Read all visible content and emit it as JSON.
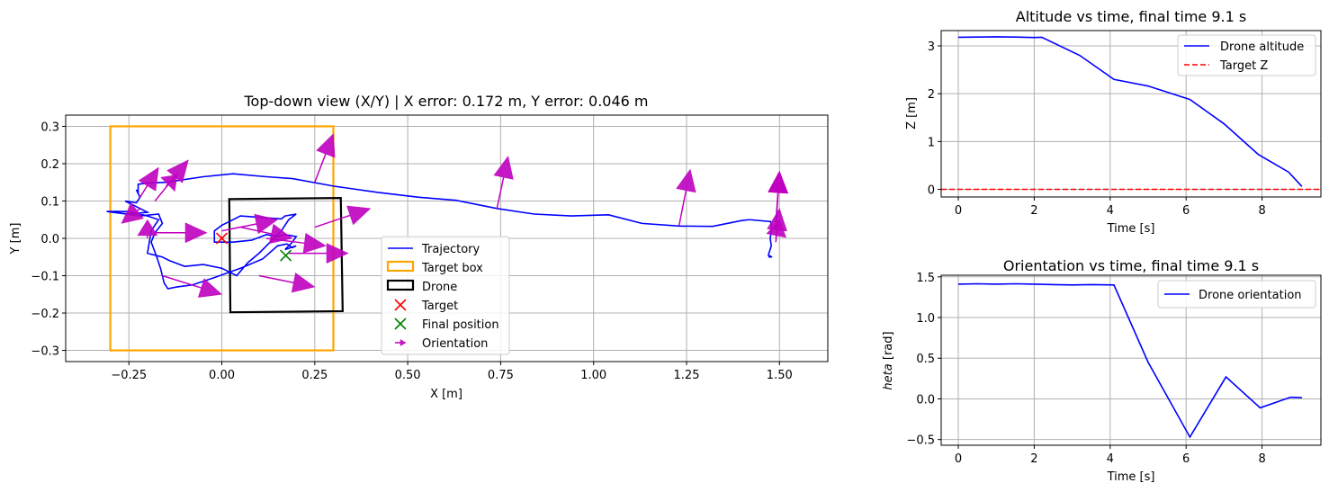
{
  "chart_data": [
    {
      "id": "topdown",
      "type": "scatter",
      "title": "Top-down view (X/Y) | X error: 0.172 m, Y error: 0.046 m",
      "xlabel": "X [m]",
      "ylabel": "Y [m]",
      "xlim": [
        -0.42,
        1.63
      ],
      "ylim": [
        -0.33,
        0.33
      ],
      "xticks": [
        -0.25,
        0.0,
        0.25,
        0.5,
        0.75,
        1.0,
        1.25,
        1.5
      ],
      "xtick_labels": [
        "−0.25",
        "0.00",
        "0.25",
        "0.50",
        "0.75",
        "1.00",
        "1.25",
        "1.50"
      ],
      "yticks": [
        -0.3,
        -0.2,
        -0.1,
        0.0,
        0.1,
        0.2,
        0.3
      ],
      "ytick_labels": [
        "−0.3",
        "−0.2",
        "−0.1",
        "0.0",
        "0.1",
        "0.2",
        "0.3"
      ],
      "grid": true,
      "legend_position": "lower-center",
      "colors": {
        "trajectory": "#0000ff",
        "target_box": "#ffa500",
        "drone": "#000000",
        "target": "#ff0000",
        "final": "#008000",
        "orientation": "#bf00bf"
      },
      "series": [
        {
          "name": "Trajectory",
          "points": [
            [
              1.47,
              -0.05
            ],
            [
              1.48,
              -0.05
            ],
            [
              1.47,
              -0.045
            ],
            [
              1.478,
              -0.02
            ],
            [
              1.475,
              0.0
            ],
            [
              1.48,
              0.03
            ],
            [
              1.476,
              0.045
            ],
            [
              1.42,
              0.05
            ],
            [
              1.4,
              0.048
            ],
            [
              1.32,
              0.032
            ],
            [
              1.23,
              0.033
            ],
            [
              1.13,
              0.04
            ],
            [
              1.04,
              0.063
            ],
            [
              0.94,
              0.06
            ],
            [
              0.84,
              0.065
            ],
            [
              0.74,
              0.08
            ],
            [
              0.63,
              0.102
            ],
            [
              0.53,
              0.11
            ],
            [
              0.42,
              0.123
            ],
            [
              0.3,
              0.14
            ],
            [
              0.19,
              0.16
            ],
            [
              0.12,
              0.165
            ],
            [
              0.03,
              0.173
            ],
            [
              -0.05,
              0.165
            ],
            [
              -0.15,
              0.15
            ],
            [
              -0.2,
              0.148
            ],
            [
              -0.225,
              0.145
            ],
            [
              -0.225,
              0.125
            ],
            [
              -0.23,
              0.13
            ],
            [
              -0.22,
              0.11
            ],
            [
              -0.23,
              0.095
            ],
            [
              -0.26,
              0.1
            ],
            [
              -0.22,
              0.08
            ],
            [
              -0.2,
              0.07
            ],
            [
              -0.25,
              0.065
            ],
            [
              -0.31,
              0.072
            ],
            [
              -0.22,
              0.06
            ],
            [
              -0.17,
              0.065
            ],
            [
              -0.16,
              0.04
            ],
            [
              -0.18,
              0.015
            ],
            [
              -0.19,
              -0.01
            ],
            [
              -0.175,
              -0.05
            ],
            [
              -0.165,
              -0.08
            ],
            [
              -0.155,
              -0.12
            ],
            [
              -0.145,
              -0.135
            ],
            [
              -0.12,
              -0.13
            ],
            [
              -0.08,
              -0.125
            ],
            [
              -0.02,
              -0.105
            ],
            [
              0.05,
              -0.08
            ],
            [
              0.11,
              -0.055
            ],
            [
              0.15,
              -0.02
            ],
            [
              0.175,
              -0.015
            ],
            [
              0.19,
              -0.025
            ],
            [
              0.2,
              -0.02
            ],
            [
              0.17,
              -0.03
            ],
            [
              0.19,
              -0.01
            ],
            [
              0.2,
              0.005
            ],
            [
              0.17,
              0.01
            ],
            [
              0.15,
              0.005
            ],
            [
              0.12,
              0.01
            ],
            [
              0.08,
              -0.005
            ],
            [
              0.03,
              -0.01
            ],
            [
              -0.02,
              -0.01
            ],
            [
              -0.02,
              0.02
            ],
            [
              0.0,
              0.035
            ],
            [
              0.05,
              0.06
            ],
            [
              0.12,
              0.055
            ],
            [
              0.16,
              0.052
            ],
            [
              0.17,
              0.06
            ],
            [
              0.2,
              0.065
            ],
            [
              0.18,
              0.05
            ],
            [
              0.16,
              0.02
            ],
            [
              0.13,
              -0.01
            ],
            [
              0.1,
              -0.04
            ],
            [
              0.07,
              -0.065
            ],
            [
              0.04,
              -0.1
            ],
            [
              0.02,
              -0.09
            ],
            [
              0.0,
              -0.08
            ],
            [
              -0.05,
              -0.07
            ],
            [
              -0.1,
              -0.075
            ],
            [
              -0.14,
              -0.06
            ],
            [
              -0.16,
              -0.05
            ],
            [
              -0.2,
              -0.04
            ],
            [
              -0.19,
              0.02
            ],
            [
              -0.17,
              0.05
            ],
            [
              -0.2,
              0.06
            ],
            [
              -0.24,
              0.07
            ],
            [
              -0.26,
              0.072
            ],
            [
              -0.31,
              0.072
            ]
          ]
        },
        {
          "name": "Target box",
          "x0": -0.3,
          "y0": -0.3,
          "x1": 0.3,
          "y1": 0.3
        },
        {
          "name": "Drone",
          "corners": [
            [
              0.02,
              0.105
            ],
            [
              0.32,
              0.108
            ],
            [
              0.325,
              -0.195
            ],
            [
              0.023,
              -0.198
            ]
          ]
        },
        {
          "name": "Target",
          "x": 0.0,
          "y": 0.0,
          "marker": "x"
        },
        {
          "name": "Final position",
          "x": 0.172,
          "y": -0.046,
          "marker": "x"
        },
        {
          "name": "Orientation",
          "arrows": [
            [
              -0.22,
              0.11,
              0.05,
              0.08
            ],
            [
              -0.18,
              0.1,
              0.09,
              0.11
            ],
            [
              -0.15,
              0.14,
              0.03,
              0.03
            ],
            [
              -0.22,
              0.08,
              -0.05,
              -0.04
            ],
            [
              -0.2,
              0.0,
              0.0,
              0.05
            ],
            [
              -0.18,
              0.015,
              0.14,
              0.0
            ],
            [
              -0.16,
              -0.1,
              0.16,
              -0.05
            ],
            [
              0.0,
              0.02,
              0.15,
              0.03
            ],
            [
              0.05,
              0.03,
              0.14,
              -0.03
            ],
            [
              0.1,
              -0.1,
              0.15,
              -0.03
            ],
            [
              0.12,
              0.0,
              0.16,
              -0.02
            ],
            [
              0.18,
              -0.04,
              0.16,
              0.0
            ],
            [
              0.25,
              0.15,
              0.05,
              0.13
            ],
            [
              0.25,
              0.03,
              0.15,
              0.05
            ],
            [
              0.74,
              0.08,
              0.03,
              0.14
            ],
            [
              1.23,
              0.035,
              0.03,
              0.15
            ],
            [
              1.49,
              0.02,
              0.01,
              0.16
            ],
            [
              1.49,
              0.04,
              0.01,
              0.14
            ],
            [
              1.49,
              -0.01,
              0.01,
              0.09
            ],
            [
              1.49,
              0.0,
              0.01,
              0.05
            ]
          ]
        }
      ]
    },
    {
      "id": "altitude",
      "type": "line",
      "title": "Altitude vs time, final time 9.1 s",
      "xlabel": "Time [s]",
      "ylabel": "Z [m]",
      "xlim": [
        -0.45,
        9.55
      ],
      "ylim": [
        -0.16,
        3.32
      ],
      "xticks": [
        0,
        2,
        4,
        6,
        8
      ],
      "xtick_labels": [
        "0",
        "2",
        "4",
        "6",
        "8"
      ],
      "yticks": [
        0,
        1,
        2,
        3
      ],
      "ytick_labels": [
        "0",
        "1",
        "2",
        "3"
      ],
      "grid": true,
      "legend_position": "upper-right",
      "series": [
        {
          "name": "Drone altitude",
          "color": "#0000ff",
          "style": "solid",
          "x": [
            0,
            0.5,
            1.0,
            1.5,
            2.0,
            2.2,
            3.2,
            4.1,
            5.0,
            6.1,
            7.0,
            7.9,
            8.7,
            9.05
          ],
          "y": [
            3.18,
            3.185,
            3.19,
            3.185,
            3.175,
            3.18,
            2.8,
            2.3,
            2.16,
            1.88,
            1.37,
            0.73,
            0.36,
            0.06
          ]
        },
        {
          "name": "Target Z",
          "color": "#ff0000",
          "style": "dashed",
          "y_const": 0.0
        }
      ]
    },
    {
      "id": "orientation",
      "type": "line",
      "title": "Orientation vs time, final time 9.1 s",
      "xlabel": "Time [s]",
      "ylabel": "$\\theta$ [rad]",
      "ylabel_shown": "heta [rad]",
      "xlim": [
        -0.45,
        9.55
      ],
      "ylim": [
        -0.57,
        1.52
      ],
      "xticks": [
        0,
        2,
        4,
        6,
        8
      ],
      "xtick_labels": [
        "0",
        "2",
        "4",
        "6",
        "8"
      ],
      "yticks": [
        -0.5,
        0.0,
        0.5,
        1.0,
        1.5
      ],
      "ytick_labels": [
        "−0.5",
        "0.0",
        "0.5",
        "1.0",
        "1.5"
      ],
      "grid": true,
      "legend_position": "upper-right",
      "series": [
        {
          "name": "Drone orientation",
          "color": "#0000ff",
          "style": "solid",
          "x": [
            0,
            0.5,
            1.0,
            1.5,
            2.0,
            2.5,
            3.0,
            3.5,
            4.1,
            5.0,
            6.1,
            7.05,
            7.95,
            8.75,
            9.05
          ],
          "y": [
            1.41,
            1.415,
            1.41,
            1.415,
            1.41,
            1.405,
            1.4,
            1.405,
            1.4,
            0.45,
            -0.47,
            0.27,
            -0.11,
            0.02,
            0.015
          ]
        }
      ]
    }
  ]
}
